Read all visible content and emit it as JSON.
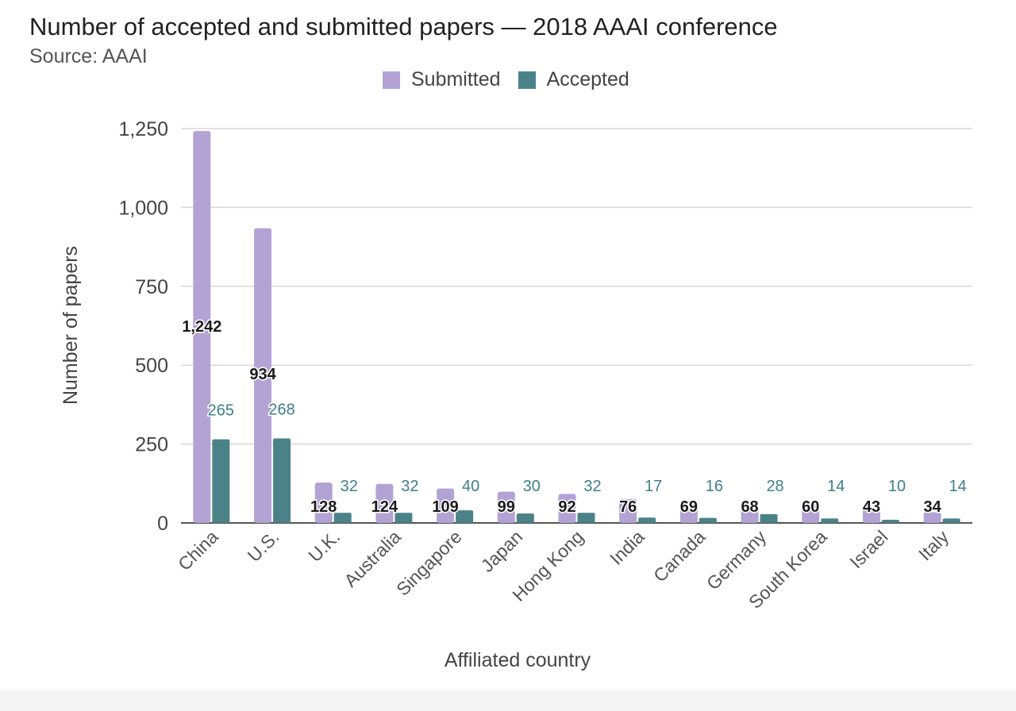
{
  "chart_data": {
    "type": "bar",
    "title": "Number of accepted and submitted papers — 2018 AAAI conference",
    "subtitle": "Source: AAAI",
    "xlabel": "Affiliated country",
    "ylabel": "Number of papers",
    "ylim": [
      0,
      1250
    ],
    "yticks": [
      0,
      250,
      500,
      750,
      1000,
      1250
    ],
    "ytick_labels": [
      "0",
      "250",
      "500",
      "750",
      "1,000",
      "1,250"
    ],
    "categories": [
      "China",
      "U.S.",
      "U.K.",
      "Australia",
      "Singapore",
      "Japan",
      "Hong Kong",
      "India",
      "Canada",
      "Germany",
      "South Korea",
      "Israel",
      "Italy"
    ],
    "series": [
      {
        "name": "Submitted",
        "color": "#b3a3d5",
        "values": [
          1242,
          934,
          128,
          124,
          109,
          99,
          92,
          76,
          69,
          68,
          60,
          43,
          34
        ],
        "labels": [
          "1,242",
          "934",
          "128",
          "124",
          "109",
          "99",
          "92",
          "76",
          "69",
          "68",
          "60",
          "43",
          "34"
        ]
      },
      {
        "name": "Accepted",
        "color": "#4b8288",
        "values": [
          265,
          268,
          32,
          32,
          40,
          30,
          32,
          17,
          16,
          28,
          14,
          10,
          14
        ],
        "labels": [
          "265",
          "268",
          "32",
          "32",
          "40",
          "30",
          "32",
          "17",
          "16",
          "28",
          "14",
          "10",
          "14"
        ]
      }
    ],
    "grid": true,
    "legend_position": "top-center"
  }
}
